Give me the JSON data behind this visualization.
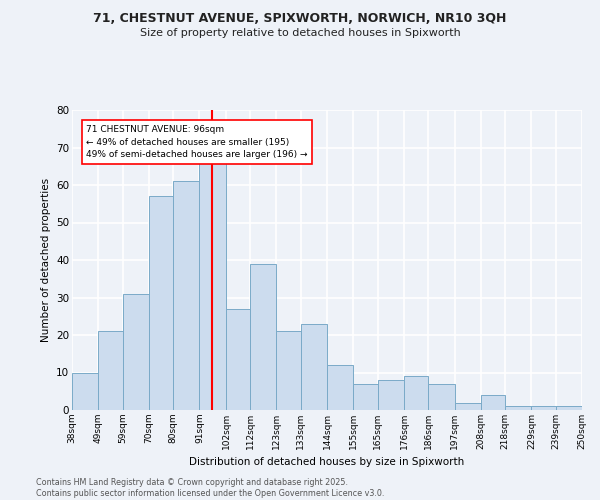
{
  "title1": "71, CHESTNUT AVENUE, SPIXWORTH, NORWICH, NR10 3QH",
  "title2": "Size of property relative to detached houses in Spixworth",
  "xlabel": "Distribution of detached houses by size in Spixworth",
  "ylabel": "Number of detached properties",
  "bin_labels": [
    "38sqm",
    "49sqm",
    "59sqm",
    "70sqm",
    "80sqm",
    "91sqm",
    "102sqm",
    "112sqm",
    "123sqm",
    "133sqm",
    "144sqm",
    "155sqm",
    "165sqm",
    "176sqm",
    "186sqm",
    "197sqm",
    "208sqm",
    "218sqm",
    "229sqm",
    "239sqm",
    "250sqm"
  ],
  "bar_color": "#ccdcee",
  "bar_edge_color": "#7aaac8",
  "vline_x": 96,
  "vline_color": "red",
  "annotation_text": "71 CHESTNUT AVENUE: 96sqm\n← 49% of detached houses are smaller (195)\n49% of semi-detached houses are larger (196) →",
  "annotation_box_color": "white",
  "annotation_box_edge": "red",
  "bg_color": "#eef2f8",
  "grid_color": "white",
  "footer": "Contains HM Land Registry data © Crown copyright and database right 2025.\nContains public sector information licensed under the Open Government Licence v3.0.",
  "bin_edges": [
    38,
    49,
    59,
    70,
    80,
    91,
    102,
    112,
    123,
    133,
    144,
    155,
    165,
    176,
    186,
    197,
    208,
    218,
    229,
    239,
    250
  ],
  "hist_counts": [
    10,
    21,
    31,
    57,
    61,
    67,
    27,
    39,
    21,
    23,
    12,
    7,
    8,
    9,
    7,
    2,
    4,
    1,
    1,
    1
  ],
  "ylim": [
    0,
    80
  ],
  "yticks": [
    0,
    10,
    20,
    30,
    40,
    50,
    60,
    70,
    80
  ]
}
